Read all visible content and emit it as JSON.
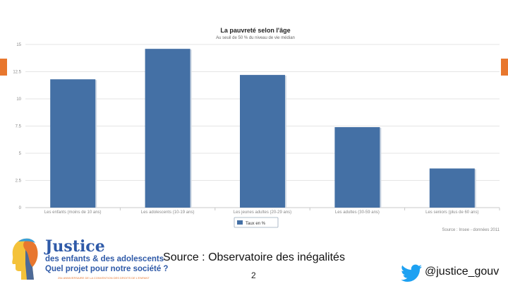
{
  "colors": {
    "bar": "#4470a5",
    "accent": "#e8772e",
    "brand_blue": "#2f5aa8",
    "twitter": "#1da1f2"
  },
  "chart_data": {
    "type": "bar",
    "title": "La pauvreté selon l'âge",
    "subtitle": "Au seuil de 50 % du niveau de vie médian",
    "categories": [
      "Les enfants (moins de 10 ans)",
      "Les adolescents (10-19 ans)",
      "Les jeunes adultes (20-29 ans)",
      "Les adultes (30-59 ans)",
      "Les seniors (plus de 60 ans)"
    ],
    "series": [
      {
        "name": "Taux en %",
        "values": [
          11.8,
          14.6,
          12.2,
          7.4,
          3.6
        ]
      }
    ],
    "yticks": [
      0,
      2.5,
      5,
      7.5,
      10,
      12.5,
      15
    ],
    "ylim": [
      0,
      15
    ],
    "grid": true,
    "legend": "bottom-center",
    "source_note": "Source : Insee - données 2011"
  },
  "footer": {
    "source": "Source : Observatoire des inégalités",
    "page": "2"
  },
  "logo": {
    "title": "Justice",
    "line1": "des enfants & des adolescents",
    "line2": "Quel projet pour notre société ?",
    "tiny": "25e ANNIVERSAIRE DE LA CONVENTION DES DROITS DE L'ENFANT"
  },
  "twitter": {
    "icon": "twitter-bird-icon",
    "handle": "@justice_gouv"
  }
}
